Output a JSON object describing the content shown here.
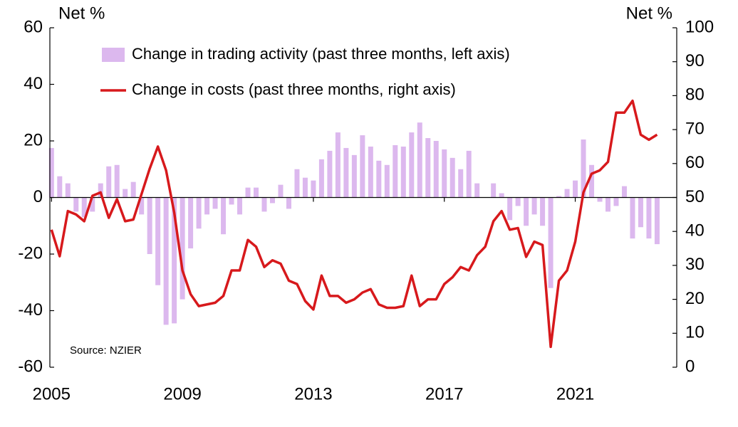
{
  "chart_data": {
    "type": "combo",
    "ylabel": "Net %",
    "y2label": "Net %",
    "source": "Source: NZIER",
    "x": [
      2005,
      2005.25,
      2005.5,
      2005.75,
      2006,
      2006.25,
      2006.5,
      2006.75,
      2007,
      2007.25,
      2007.5,
      2007.75,
      2008,
      2008.25,
      2008.5,
      2008.75,
      2009,
      2009.25,
      2009.5,
      2009.75,
      2010,
      2010.25,
      2010.5,
      2010.75,
      2011,
      2011.25,
      2011.5,
      2011.75,
      2012,
      2012.25,
      2012.5,
      2012.75,
      2013,
      2013.25,
      2013.5,
      2013.75,
      2014,
      2014.25,
      2014.5,
      2014.75,
      2015,
      2015.25,
      2015.5,
      2015.75,
      2016,
      2016.25,
      2016.5,
      2016.75,
      2017,
      2017.25,
      2017.5,
      2017.75,
      2018,
      2018.25,
      2018.5,
      2018.75,
      2019,
      2019.25,
      2019.5,
      2019.75,
      2020,
      2020.25,
      2020.5,
      2020.75,
      2021,
      2021.25,
      2021.5,
      2021.75,
      2022,
      2022.25,
      2022.5,
      2022.75,
      2023,
      2023.25,
      2023.5
    ],
    "xlim": [
      2004.95,
      2024.1
    ],
    "xticks": [
      2005,
      2009,
      2013,
      2017,
      2021
    ],
    "ylim": [
      -60,
      60
    ],
    "yticks": [
      60,
      40,
      20,
      0,
      -20,
      -40,
      -60
    ],
    "y2lim": [
      0,
      100
    ],
    "y2ticks": [
      100,
      90,
      80,
      70,
      60,
      50,
      40,
      30,
      20,
      10,
      0
    ],
    "series": [
      {
        "name": "Change in trading activity (past three months, left axis)",
        "type": "bar",
        "axis": "y",
        "color": "#dcb8ee",
        "values": [
          17.5,
          7.5,
          5,
          -5,
          -7,
          -5,
          5,
          11,
          11.5,
          3,
          5.5,
          -6,
          -20,
          -31,
          -45,
          -44.5,
          -36,
          -18,
          -11,
          -6,
          -4,
          -13,
          -2.5,
          -6,
          3.5,
          3.5,
          -5,
          -2,
          4.5,
          -4,
          10,
          7,
          6,
          13.5,
          16.5,
          23,
          17.5,
          15,
          22,
          18,
          13,
          11.5,
          18.5,
          18,
          23,
          26.5,
          21,
          20,
          17,
          14,
          10,
          16.5,
          5,
          0,
          5,
          1.5,
          -8,
          -3,
          -10,
          -6,
          -10,
          -32,
          0.5,
          3,
          6,
          20.5,
          11.5,
          -1.5,
          -5,
          -3,
          4,
          -14.5,
          -10.5,
          -14.5,
          -16.5
        ]
      },
      {
        "name": "Change in costs (past three months, right axis)",
        "type": "line",
        "axis": "y2",
        "color": "#d7191c",
        "values": [
          40.5,
          32.7,
          46,
          45,
          43,
          50.5,
          51.5,
          44,
          49.5,
          43,
          43.5,
          51,
          58.5,
          65,
          58,
          45.5,
          28.5,
          21.5,
          18,
          18.5,
          19,
          21,
          28.5,
          28.5,
          37.5,
          35.5,
          29.5,
          31.5,
          30.5,
          25.5,
          24.5,
          19.5,
          17,
          27,
          21,
          21,
          19,
          20,
          22,
          23,
          18.5,
          17.5,
          17.5,
          18,
          27,
          18,
          20,
          20,
          24.5,
          26.5,
          29.5,
          28.5,
          33,
          35.5,
          43,
          46,
          40.5,
          41,
          32.5,
          37,
          36,
          6,
          25.5,
          28.5,
          37,
          51.5,
          57,
          58,
          60.5,
          75,
          75,
          78.5,
          68.5,
          67,
          68.5
        ]
      }
    ]
  }
}
